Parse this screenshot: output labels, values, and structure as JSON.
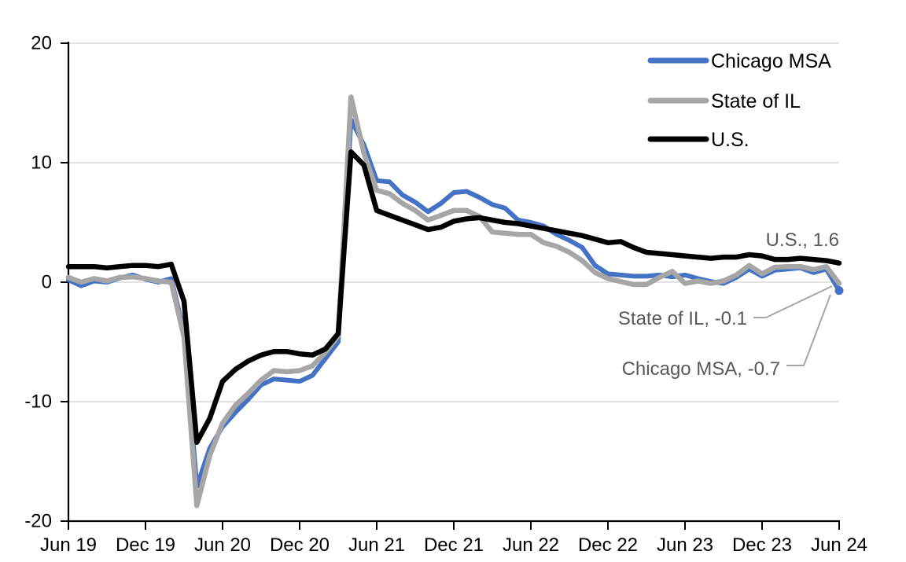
{
  "chart_data": {
    "type": "line",
    "title": "",
    "x_frequency": "monthly",
    "x_range": [
      "Jun 2019",
      "Jun 2024"
    ],
    "ylim": [
      -20,
      20
    ],
    "grid": "horizontal",
    "legend_position": "top-right",
    "gridline_color": "#D9D9D9",
    "axis_color": "#000000",
    "annotation_text_color": "#595959",
    "leader_line_color": "#A6A6A6",
    "y_ticks": [
      {
        "value": 20,
        "label": "20"
      },
      {
        "value": 10,
        "label": "10"
      },
      {
        "value": 0,
        "label": "0"
      },
      {
        "value": -10,
        "label": "-10"
      },
      {
        "value": -20,
        "label": "-20"
      }
    ],
    "x_ticks": [
      {
        "index": 0,
        "label": "Jun 19"
      },
      {
        "index": 6,
        "label": "Dec 19"
      },
      {
        "index": 12,
        "label": "Jun 20"
      },
      {
        "index": 18,
        "label": "Dec 20"
      },
      {
        "index": 24,
        "label": "Jun 21"
      },
      {
        "index": 30,
        "label": "Dec 21"
      },
      {
        "index": 36,
        "label": "Jun 22"
      },
      {
        "index": 42,
        "label": "Dec 22"
      },
      {
        "index": 48,
        "label": "Jun 23"
      },
      {
        "index": 54,
        "label": "Dec 23"
      },
      {
        "index": 60,
        "label": "Jun 24"
      }
    ],
    "series": [
      {
        "name": "Chicago MSA",
        "color": "#4472C4",
        "end_marker": true,
        "end_value": -0.7,
        "values": [
          0.2,
          -0.3,
          0.1,
          0,
          0.35,
          0.6,
          0.25,
          0,
          0.3,
          -4.2,
          -17.1,
          -13.9,
          -12.1,
          -10.9,
          -9.8,
          -8.6,
          -8.1,
          -8.2,
          -8.3,
          -7.8,
          -6.4,
          -5,
          13.6,
          11.5,
          8.5,
          8.4,
          7.3,
          6.7,
          5.9,
          6.6,
          7.5,
          7.6,
          7.1,
          6.5,
          6.2,
          5.2,
          5,
          4.7,
          4,
          3.5,
          2.9,
          1.4,
          0.7,
          0.6,
          0.5,
          0.5,
          0.6,
          0.45,
          0.6,
          0.3,
          0.05,
          -0.1,
          0.4,
          1.1,
          0.5,
          1,
          1.1,
          1.2,
          0.8,
          1.1,
          -0.7
        ]
      },
      {
        "name": "State of IL",
        "color": "#A6A6A6",
        "end_marker": false,
        "end_value": -0.1,
        "values": [
          0.4,
          0,
          0.3,
          0.1,
          0.4,
          0.45,
          0.3,
          0.1,
          0,
          -4.6,
          -18.7,
          -14.5,
          -11.8,
          -10.3,
          -9.3,
          -8.2,
          -7.4,
          -7.5,
          -7.4,
          -7,
          -5.9,
          -4.5,
          15.5,
          10.8,
          7.7,
          7.4,
          6.6,
          6,
          5.2,
          5.6,
          6,
          6,
          5.5,
          4.2,
          4.1,
          4,
          4,
          3.3,
          3,
          2.5,
          1.8,
          0.8,
          0.3,
          0.05,
          -0.2,
          -0.2,
          0.4,
          0.9,
          -0.1,
          0.1,
          -0.1,
          0.1,
          0.6,
          1.4,
          0.7,
          1.25,
          1.3,
          1.3,
          1.05,
          1.3,
          -0.1
        ]
      },
      {
        "name": "U.S.",
        "color": "#000000",
        "end_marker": false,
        "end_value": 1.6,
        "values": [
          1.3,
          1.3,
          1.3,
          1.2,
          1.3,
          1.4,
          1.4,
          1.3,
          1.5,
          -1.6,
          -13.4,
          -11.4,
          -8.3,
          -7.3,
          -6.6,
          -6.1,
          -5.8,
          -5.8,
          -6,
          -6.1,
          -5.6,
          -4.3,
          10.9,
          9.8,
          6,
          5.6,
          5.2,
          4.8,
          4.4,
          4.6,
          5.1,
          5.3,
          5.4,
          5.2,
          5,
          4.9,
          4.7,
          4.5,
          4.3,
          4.1,
          3.9,
          3.6,
          3.3,
          3.4,
          2.9,
          2.5,
          2.4,
          2.3,
          2.2,
          2.1,
          2,
          2.1,
          2.1,
          2.3,
          2.2,
          1.9,
          1.9,
          2,
          1.9,
          1.8,
          1.6
        ]
      }
    ],
    "annotations": [
      {
        "text": "U.S., 1.6",
        "series": "U.S."
      },
      {
        "text": "State of IL, -0.1",
        "series": "State of IL"
      },
      {
        "text": "Chicago MSA, -0.7",
        "series": "Chicago MSA"
      }
    ]
  },
  "legend": {
    "items": [
      {
        "label": "Chicago MSA"
      },
      {
        "label": "State of IL"
      },
      {
        "label": "U.S."
      }
    ]
  }
}
